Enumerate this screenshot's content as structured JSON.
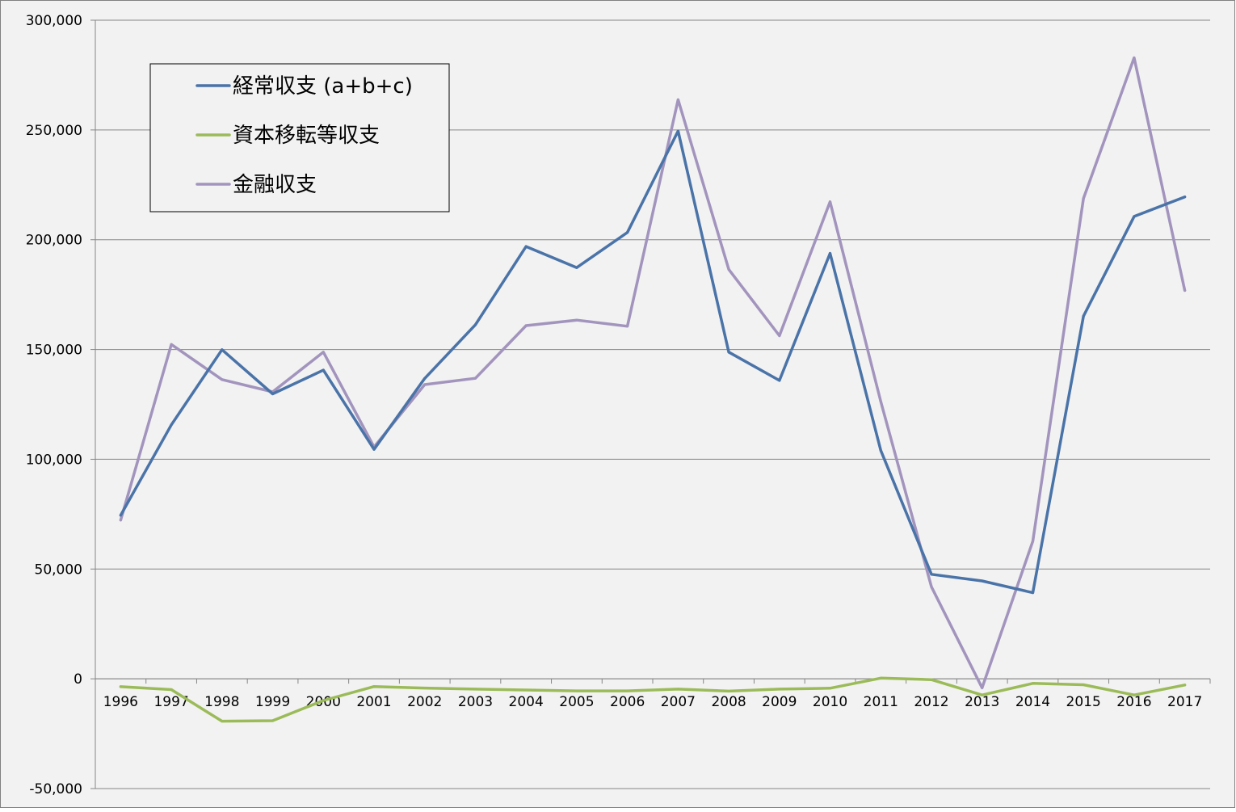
{
  "chart_data": {
    "type": "line",
    "title": "",
    "xlabel": "",
    "ylabel": "",
    "ylim": [
      -50000,
      300000
    ],
    "y_ticks": [
      "300,000",
      "250,000",
      "200,000",
      "150,000",
      "100,000",
      "50,000",
      "0",
      "-50,000"
    ],
    "categories": [
      "1996",
      "1997",
      "1998",
      "1999",
      "2000",
      "2001",
      "2002",
      "2003",
      "2004",
      "2005",
      "2006",
      "2007",
      "2008",
      "2009",
      "2010",
      "2011",
      "2012",
      "2013",
      "2014",
      "2015",
      "2016",
      "2017"
    ],
    "series": [
      {
        "name": "経常収支 (a+b+c)",
        "color": "#4a73a8",
        "values": [
          74500,
          115700,
          149900,
          129800,
          140600,
          104500,
          136800,
          161300,
          196900,
          187300,
          203300,
          249500,
          148800,
          135900,
          193800,
          104000,
          47600,
          44600,
          39200,
          165200,
          210600,
          219500
        ]
      },
      {
        "name": "資本移転等収支",
        "color": "#9bbb59",
        "values": [
          -3600,
          -4900,
          -19300,
          -19100,
          -9900,
          -3500,
          -4200,
          -4700,
          -5100,
          -5500,
          -5500,
          -4700,
          -5600,
          -4700,
          -4300,
          300,
          -400,
          -7400,
          -2100,
          -2700,
          -7400,
          -2800
        ]
      },
      {
        "name": "金融収支",
        "color": "#a294bd",
        "values": [
          72300,
          152300,
          136300,
          130700,
          148800,
          105600,
          134000,
          136900,
          160900,
          163400,
          160600,
          263800,
          186500,
          156300,
          217300,
          126300,
          41900,
          -4100,
          62700,
          218800,
          282900,
          176900
        ]
      }
    ],
    "grid": true,
    "legend_position": "top-left"
  }
}
